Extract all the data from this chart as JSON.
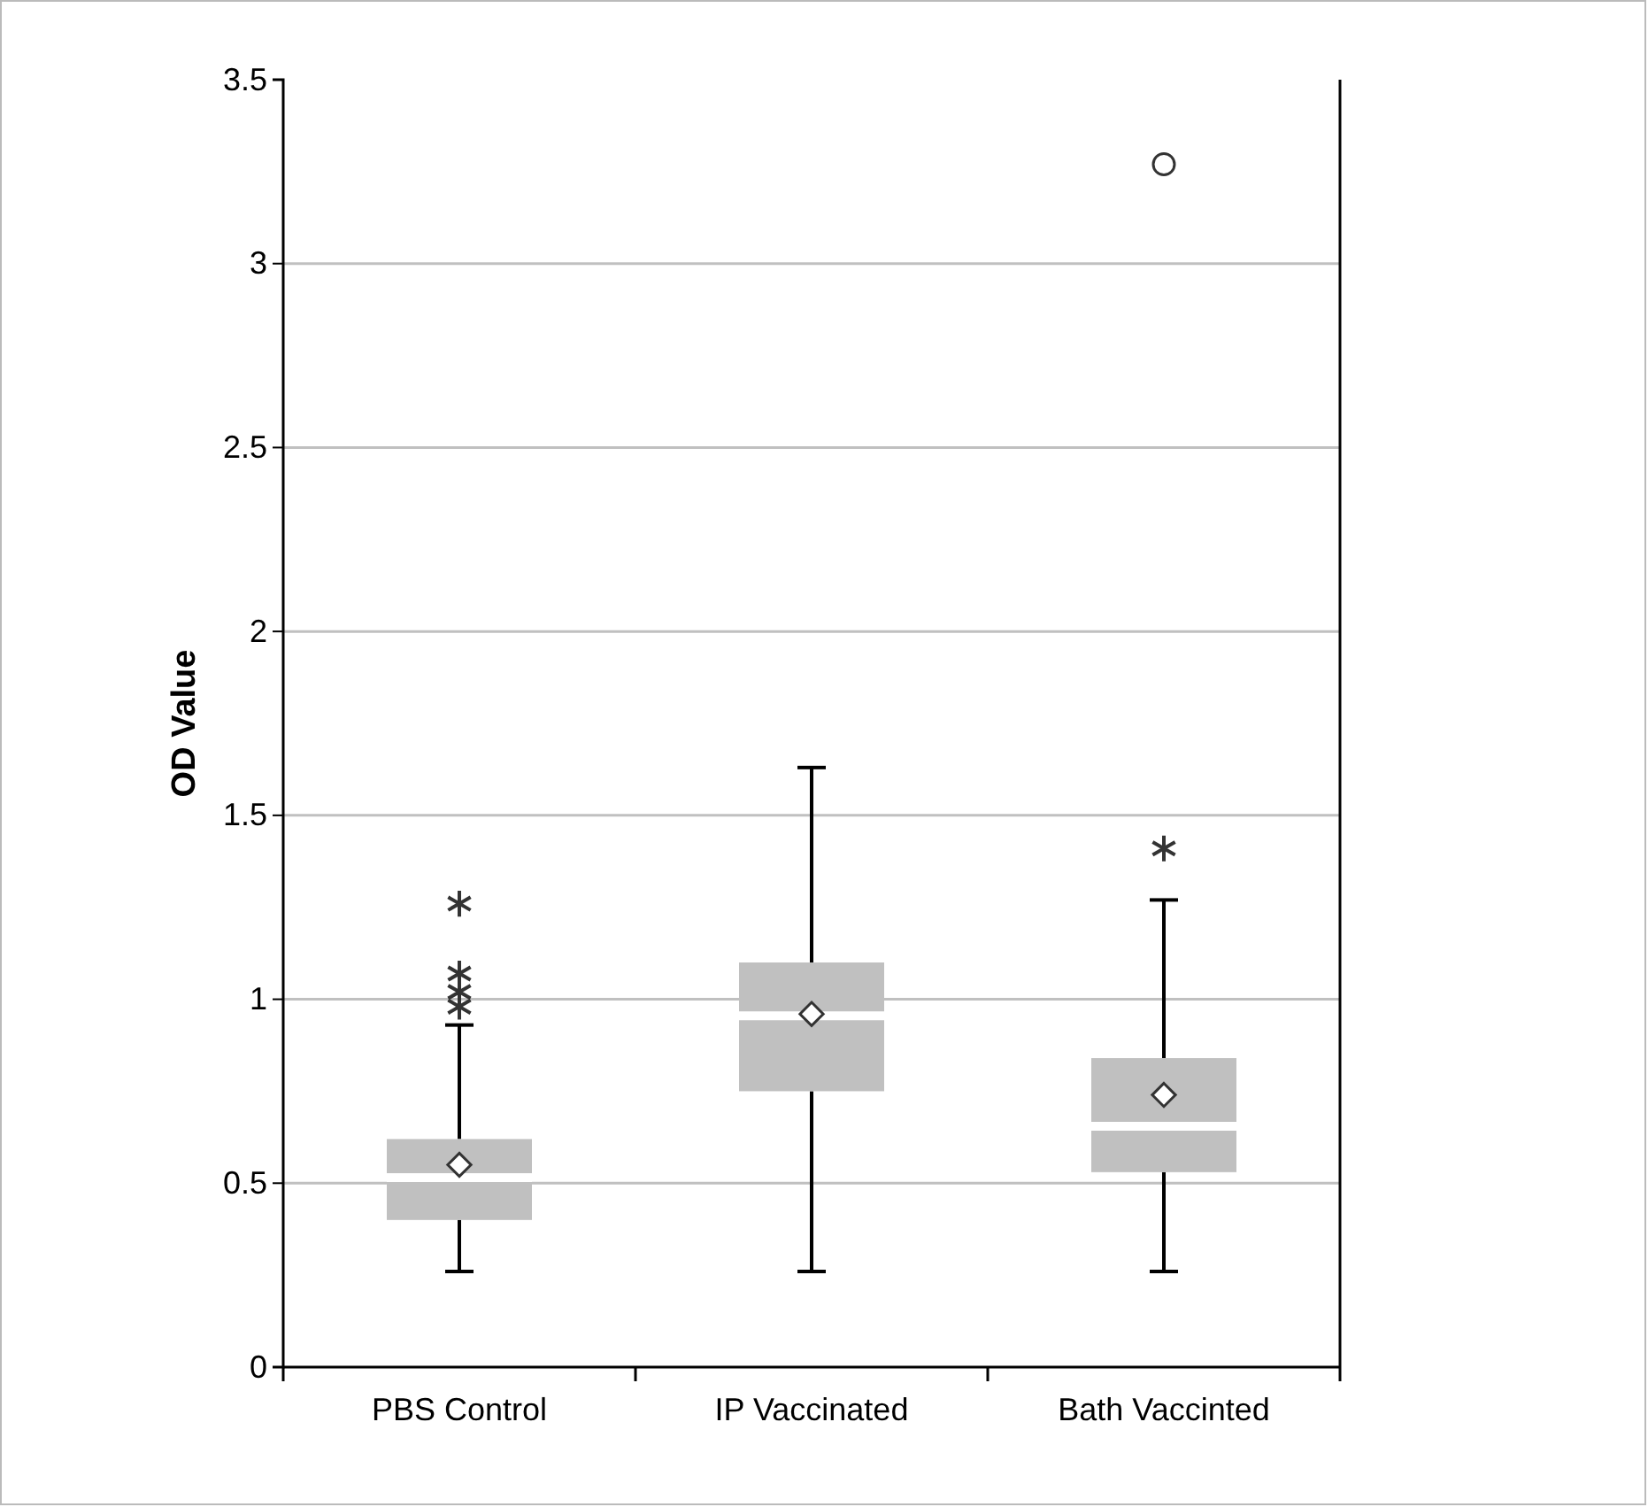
{
  "chart_data": {
    "type": "box",
    "ylabel": "OD Value",
    "categories": [
      "PBS Control",
      "IP Vaccinated",
      "Bath Vaccinted"
    ],
    "color": "#c0c0c0",
    "boxes": [
      {
        "low": 0.26,
        "q1": 0.4,
        "median": 0.515,
        "q3": 0.62,
        "high": 0.93,
        "mean": 0.55,
        "outliers": [
          1.26,
          1.07,
          1.02,
          0.98
        ]
      },
      {
        "low": 0.26,
        "q1": 0.75,
        "median": 0.955,
        "q3": 1.1,
        "high": 1.63,
        "mean": 0.96
      },
      {
        "low": 0.26,
        "q1": 0.53,
        "median": 0.655,
        "q3": 0.84,
        "high": 1.27,
        "mean": 0.74,
        "outliers": [
          3.27,
          1.41
        ]
      }
    ],
    "ylim": [
      0,
      3.5
    ],
    "yticks": [
      0,
      0.5,
      1,
      1.5,
      2,
      2.5,
      3,
      3.5
    ],
    "grid": "y"
  }
}
